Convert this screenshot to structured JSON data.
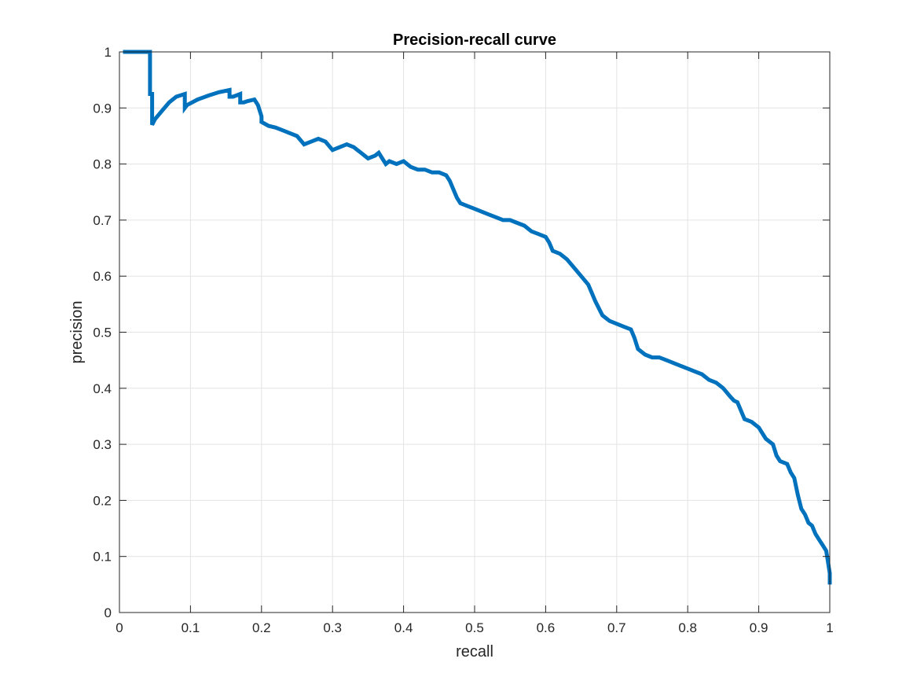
{
  "chart_data": {
    "type": "line",
    "title": "Precision-recall curve",
    "xlabel": "recall",
    "ylabel": "precision",
    "xlim": [
      0,
      1
    ],
    "ylim": [
      0,
      1
    ],
    "grid": true,
    "legend": "none",
    "xticks": [
      0,
      0.1,
      0.2,
      0.3,
      0.4,
      0.5,
      0.6,
      0.7,
      0.8,
      0.9,
      1
    ],
    "xtick_labels": [
      "0",
      "0.1",
      "0.2",
      "0.3",
      "0.4",
      "0.5",
      "0.6",
      "0.7",
      "0.8",
      "0.9",
      "1"
    ],
    "yticks": [
      0,
      0.1,
      0.2,
      0.3,
      0.4,
      0.5,
      0.6,
      0.7,
      0.8,
      0.9,
      1
    ],
    "ytick_labels": [
      "0",
      "0.1",
      "0.2",
      "0.3",
      "0.4",
      "0.5",
      "0.6",
      "0.7",
      "0.8",
      "0.9",
      "1"
    ],
    "colors": {
      "series": "#0072BD",
      "axes": "#262626",
      "grid": "#e3e3e3"
    },
    "series": [
      {
        "x": [
          0.005,
          0.043,
          0.043,
          0.046,
          0.046,
          0.05,
          0.06,
          0.07,
          0.08,
          0.092,
          0.092,
          0.095,
          0.11,
          0.125,
          0.14,
          0.155,
          0.155,
          0.16,
          0.17,
          0.17,
          0.175,
          0.18,
          0.19,
          0.195,
          0.2,
          0.2,
          0.21,
          0.22,
          0.23,
          0.24,
          0.25,
          0.26,
          0.27,
          0.28,
          0.29,
          0.3,
          0.31,
          0.32,
          0.33,
          0.335,
          0.34,
          0.35,
          0.36,
          0.365,
          0.37,
          0.375,
          0.38,
          0.39,
          0.4,
          0.41,
          0.42,
          0.43,
          0.44,
          0.45,
          0.46,
          0.465,
          0.47,
          0.475,
          0.48,
          0.49,
          0.5,
          0.51,
          0.52,
          0.53,
          0.54,
          0.55,
          0.56,
          0.57,
          0.58,
          0.59,
          0.6,
          0.605,
          0.61,
          0.62,
          0.63,
          0.64,
          0.65,
          0.66,
          0.665,
          0.67,
          0.68,
          0.69,
          0.7,
          0.71,
          0.72,
          0.725,
          0.73,
          0.74,
          0.75,
          0.76,
          0.77,
          0.78,
          0.79,
          0.8,
          0.81,
          0.82,
          0.83,
          0.84,
          0.845,
          0.85,
          0.86,
          0.865,
          0.87,
          0.875,
          0.88,
          0.89,
          0.9,
          0.91,
          0.92,
          0.925,
          0.93,
          0.94,
          0.945,
          0.95,
          0.955,
          0.96,
          0.965,
          0.97,
          0.975,
          0.98,
          0.985,
          0.99,
          0.995,
          1.0,
          1.0
        ],
        "y": [
          1.0,
          1.0,
          0.925,
          0.925,
          0.87,
          0.88,
          0.895,
          0.91,
          0.92,
          0.925,
          0.9,
          0.905,
          0.915,
          0.922,
          0.928,
          0.932,
          0.92,
          0.92,
          0.925,
          0.91,
          0.91,
          0.912,
          0.915,
          0.905,
          0.885,
          0.875,
          0.868,
          0.865,
          0.86,
          0.855,
          0.85,
          0.835,
          0.84,
          0.845,
          0.84,
          0.825,
          0.83,
          0.835,
          0.83,
          0.825,
          0.82,
          0.81,
          0.815,
          0.82,
          0.81,
          0.8,
          0.805,
          0.8,
          0.805,
          0.795,
          0.79,
          0.79,
          0.785,
          0.785,
          0.78,
          0.77,
          0.755,
          0.74,
          0.73,
          0.725,
          0.72,
          0.715,
          0.71,
          0.705,
          0.7,
          0.7,
          0.695,
          0.69,
          0.68,
          0.675,
          0.67,
          0.66,
          0.645,
          0.64,
          0.63,
          0.615,
          0.6,
          0.585,
          0.57,
          0.555,
          0.53,
          0.52,
          0.515,
          0.51,
          0.505,
          0.49,
          0.47,
          0.46,
          0.455,
          0.455,
          0.45,
          0.445,
          0.44,
          0.435,
          0.43,
          0.425,
          0.415,
          0.41,
          0.405,
          0.4,
          0.385,
          0.378,
          0.375,
          0.36,
          0.345,
          0.34,
          0.33,
          0.31,
          0.3,
          0.28,
          0.27,
          0.265,
          0.25,
          0.24,
          0.21,
          0.185,
          0.175,
          0.16,
          0.155,
          0.14,
          0.13,
          0.12,
          0.11,
          0.07,
          0.05
        ]
      }
    ]
  }
}
